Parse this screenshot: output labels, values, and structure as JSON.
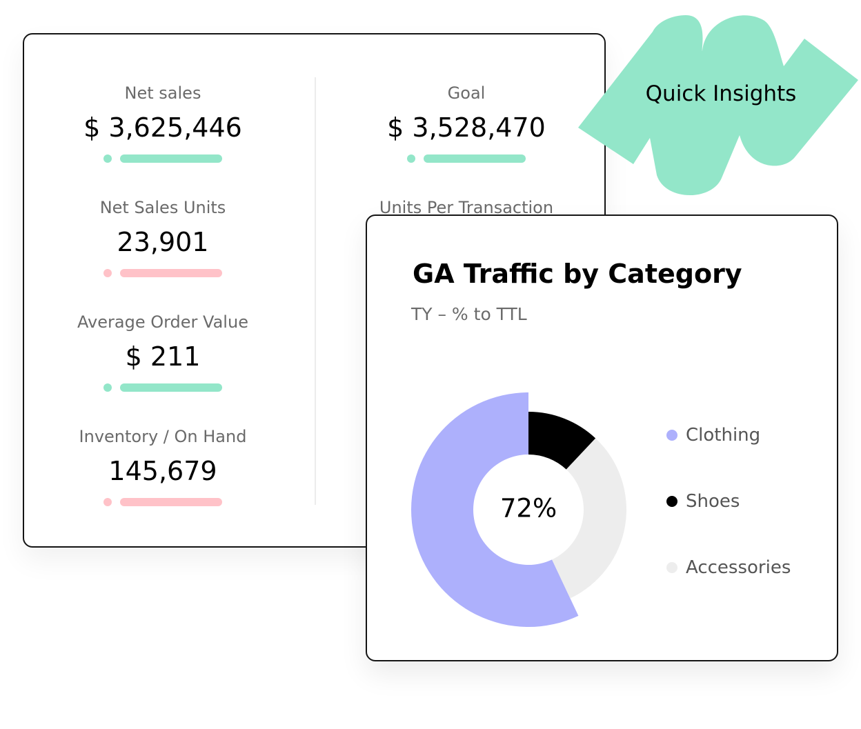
{
  "metrics": {
    "items": [
      {
        "label": "Net sales",
        "value": "$ 3,625,446",
        "status": "good"
      },
      {
        "label": "Goal",
        "value": "$ 3,528,470",
        "status": "good"
      },
      {
        "label": "Net Sales Units",
        "value": "23,901",
        "status": "bad"
      },
      {
        "label": "Units Per Transaction",
        "value": "",
        "status": ""
      },
      {
        "label": "Average Order Value",
        "value": "$ 211",
        "status": "good"
      },
      {
        "label": "Inventory / On Hand",
        "value": "145,679",
        "status": "bad"
      }
    ]
  },
  "badge": {
    "label": "Quick Insights",
    "color": "#93e6c9"
  },
  "chart_card": {
    "title": "GA Traffic by Category",
    "subtitle": "TY – % to TTL",
    "center_label": "72%"
  },
  "chart_data": {
    "type": "pie",
    "title": "GA Traffic by Category",
    "subtitle": "TY – % to TTL",
    "center_label": "72%",
    "categories": [
      "Clothing",
      "Shoes",
      "Accessories"
    ],
    "values": [
      57,
      12,
      31
    ],
    "colors": [
      "#adb0fc",
      "#000000",
      "#ededed"
    ],
    "legend": "right"
  },
  "colors": {
    "good": "#93e6c9",
    "bad": "#ffc2c8",
    "border": "#141414",
    "muted_text": "#6a6a6a"
  }
}
